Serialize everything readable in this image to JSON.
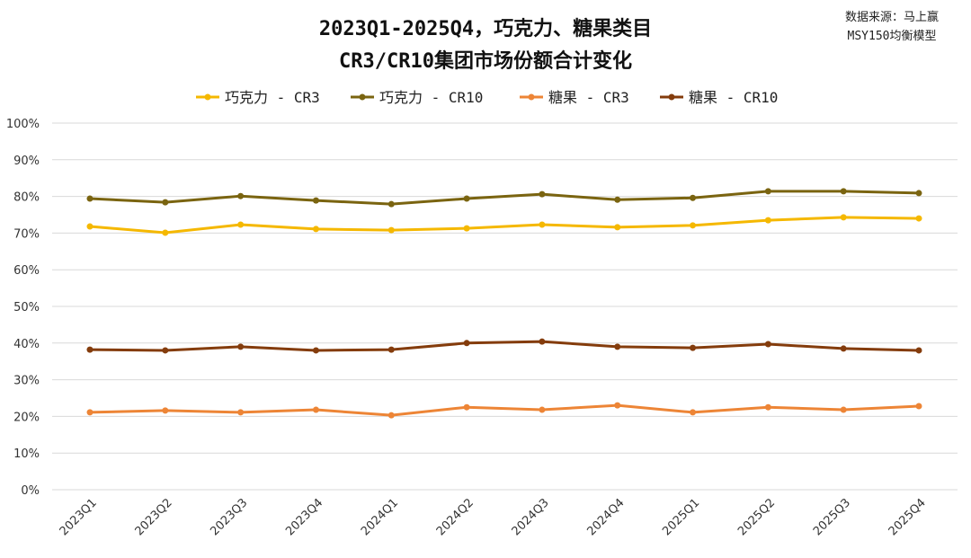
{
  "chart_data": {
    "type": "line",
    "title_line1": "2023Q1-2025Q4，巧克力、糖果类目",
    "title_line2": "CR3/CR10集团市场份额合计变化",
    "source_line1": "数据来源：马上赢",
    "source_line2": "MSY150均衡模型",
    "categories": [
      "2023Q1",
      "2023Q2",
      "2023Q3",
      "2023Q4",
      "2024Q1",
      "2024Q2",
      "2024Q3",
      "2024Q4",
      "2025Q1",
      "2025Q2",
      "2025Q3",
      "2025Q4"
    ],
    "ylim": [
      0,
      100
    ],
    "yticks": [
      0,
      10,
      20,
      30,
      40,
      50,
      60,
      70,
      80,
      90,
      100
    ],
    "ytick_suffix": "%",
    "grid": true,
    "legend_position": "top",
    "series": [
      {
        "name": "巧克力 - CR3",
        "color": "#F5B800",
        "values": [
          71.8,
          70.1,
          72.3,
          71.1,
          70.8,
          71.3,
          72.3,
          71.6,
          72.1,
          73.5,
          74.3,
          74.0
        ]
      },
      {
        "name": "巧克力 - CR10",
        "color": "#7A6410",
        "values": [
          79.4,
          78.4,
          80.1,
          78.9,
          77.9,
          79.4,
          80.6,
          79.1,
          79.6,
          81.4,
          81.4,
          80.9
        ]
      },
      {
        "name": "糖果 - CR3",
        "color": "#ED8536",
        "values": [
          21.1,
          21.6,
          21.1,
          21.8,
          20.3,
          22.5,
          21.8,
          23.0,
          21.1,
          22.5,
          21.8,
          22.8
        ]
      },
      {
        "name": "糖果 - CR10",
        "color": "#843C0C",
        "values": [
          38.2,
          38.0,
          39.0,
          38.0,
          38.2,
          40.0,
          40.4,
          39.0,
          38.7,
          39.7,
          38.5,
          38.0
        ]
      }
    ]
  }
}
